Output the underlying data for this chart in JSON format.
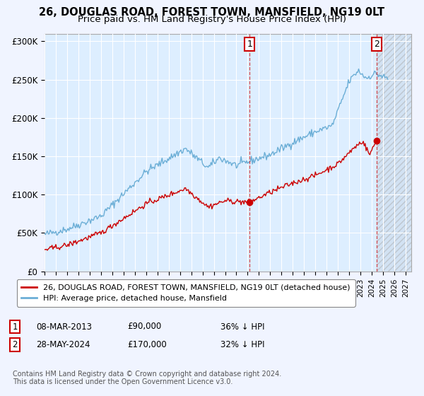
{
  "title": "26, DOUGLAS ROAD, FOREST TOWN, MANSFIELD, NG19 0LT",
  "subtitle": "Price paid vs. HM Land Registry's House Price Index (HPI)",
  "legend_red": "26, DOUGLAS ROAD, FOREST TOWN, MANSFIELD, NG19 0LT (detached house)",
  "legend_blue": "HPI: Average price, detached house, Mansfield",
  "footnote": "Contains HM Land Registry data © Crown copyright and database right 2024.\nThis data is licensed under the Open Government Licence v3.0.",
  "annotation1_date": "08-MAR-2013",
  "annotation1_price": "£90,000",
  "annotation1_hpi": "36% ↓ HPI",
  "annotation1_year": 2013.17,
  "annotation1_value": 90000,
  "annotation2_date": "28-MAY-2024",
  "annotation2_price": "£170,000",
  "annotation2_hpi": "32% ↓ HPI",
  "annotation2_year": 2024.41,
  "annotation2_value": 170000,
  "hpi_color": "#6baed6",
  "price_color": "#cc0000",
  "plot_bg_color": "#ddeeff",
  "fig_bg_color": "#f0f4ff",
  "grid_color": "#ffffff",
  "hatch_bg_color": "#c8d8e8",
  "ylim": [
    0,
    310000
  ],
  "xlim_start": 1995.0,
  "xlim_end": 2027.5,
  "title_fontsize": 10.5,
  "subtitle_fontsize": 9.5,
  "hatch_start": 2024.5
}
